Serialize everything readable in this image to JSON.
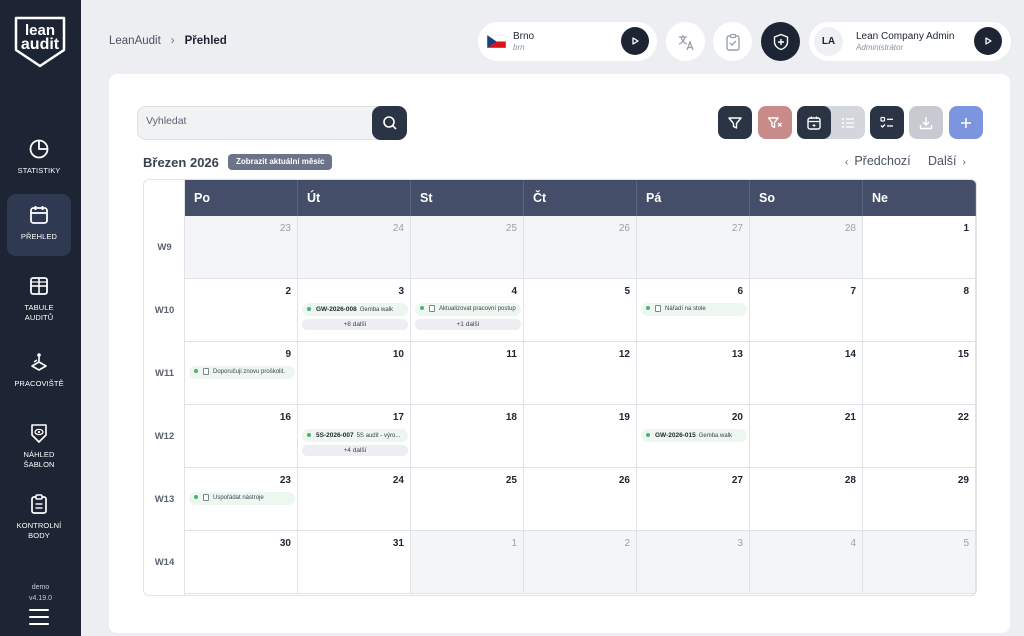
{
  "logo": {
    "line1": "lean",
    "line2": "audit"
  },
  "sidebar": {
    "items": [
      {
        "label": "STATISTIKY",
        "icon": "pie-chart-icon"
      },
      {
        "label": "PŘEHLED",
        "icon": "calendar-icon",
        "active": true
      },
      {
        "label": "TABULE AUDITŮ",
        "icon": "grid-icon"
      },
      {
        "label": "PRACOVIŠTĚ",
        "icon": "workplace-icon"
      },
      {
        "label": "NÁHLED ŠABLON",
        "icon": "eye-shield-icon"
      },
      {
        "label": "KONTROLNÍ BODY",
        "icon": "clipboard-icon"
      }
    ],
    "env": "demo",
    "version": "v4.19.0"
  },
  "breadcrumb": {
    "root": "LeanAudit",
    "separator": "›",
    "current": "Přehled"
  },
  "location": {
    "name": "Brno",
    "code": "brn",
    "flag": "czech-flag-icon"
  },
  "user": {
    "initials": "LA",
    "name": "Lean Company Admin",
    "role": "Administrátor"
  },
  "toolbar": {
    "search_placeholder": "Vyhledat"
  },
  "calendar": {
    "month_label": "Březen 2026",
    "current_month_button": "Zobrazit aktuální měsíc",
    "prev": "Předchozí",
    "next": "Další",
    "days": [
      "Po",
      "Út",
      "St",
      "Čt",
      "Pá",
      "So",
      "Ne"
    ],
    "weeks": [
      {
        "label": "W9",
        "dates": [
          "23",
          "24",
          "25",
          "26",
          "27",
          "28",
          "1"
        ],
        "other": [
          true,
          true,
          true,
          true,
          true,
          true,
          false
        ]
      },
      {
        "label": "W10",
        "dates": [
          "2",
          "3",
          "4",
          "5",
          "6",
          "7",
          "8"
        ],
        "other": [
          false,
          false,
          false,
          false,
          false,
          false,
          false
        ]
      },
      {
        "label": "W11",
        "dates": [
          "9",
          "10",
          "11",
          "12",
          "13",
          "14",
          "15"
        ],
        "other": [
          false,
          false,
          false,
          false,
          false,
          false,
          false
        ]
      },
      {
        "label": "W12",
        "dates": [
          "16",
          "17",
          "18",
          "19",
          "20",
          "21",
          "22"
        ],
        "other": [
          false,
          false,
          false,
          false,
          false,
          false,
          false
        ]
      },
      {
        "label": "W13",
        "dates": [
          "23",
          "24",
          "25",
          "26",
          "27",
          "28",
          "29"
        ],
        "other": [
          false,
          false,
          false,
          false,
          false,
          false,
          false
        ]
      },
      {
        "label": "W14",
        "dates": [
          "30",
          "31",
          "1",
          "2",
          "3",
          "4",
          "5"
        ],
        "other": [
          false,
          false,
          true,
          true,
          true,
          true,
          true
        ]
      }
    ],
    "events": [
      {
        "week": 1,
        "day": 1,
        "kind": "audit",
        "code": "GW-2026-008",
        "text": "Gemba walk",
        "more": "+8 další"
      },
      {
        "week": 1,
        "day": 2,
        "kind": "task",
        "text": "Aktualizovat pracovní postup",
        "more": "+1 další"
      },
      {
        "week": 1,
        "day": 4,
        "kind": "task",
        "text": "Nářadí na stole"
      },
      {
        "week": 2,
        "day": 0,
        "kind": "task",
        "text": "Doporučuji znovu proškolit."
      },
      {
        "week": 3,
        "day": 1,
        "kind": "audit",
        "code": "5S-2026-007",
        "text": "5S audit - výro...",
        "more": "+4 další"
      },
      {
        "week": 3,
        "day": 4,
        "kind": "audit",
        "code": "GW-2026-015",
        "text": "Gemba walk"
      },
      {
        "week": 4,
        "day": 0,
        "kind": "task",
        "text": "Uspořádat nástroje"
      }
    ]
  }
}
